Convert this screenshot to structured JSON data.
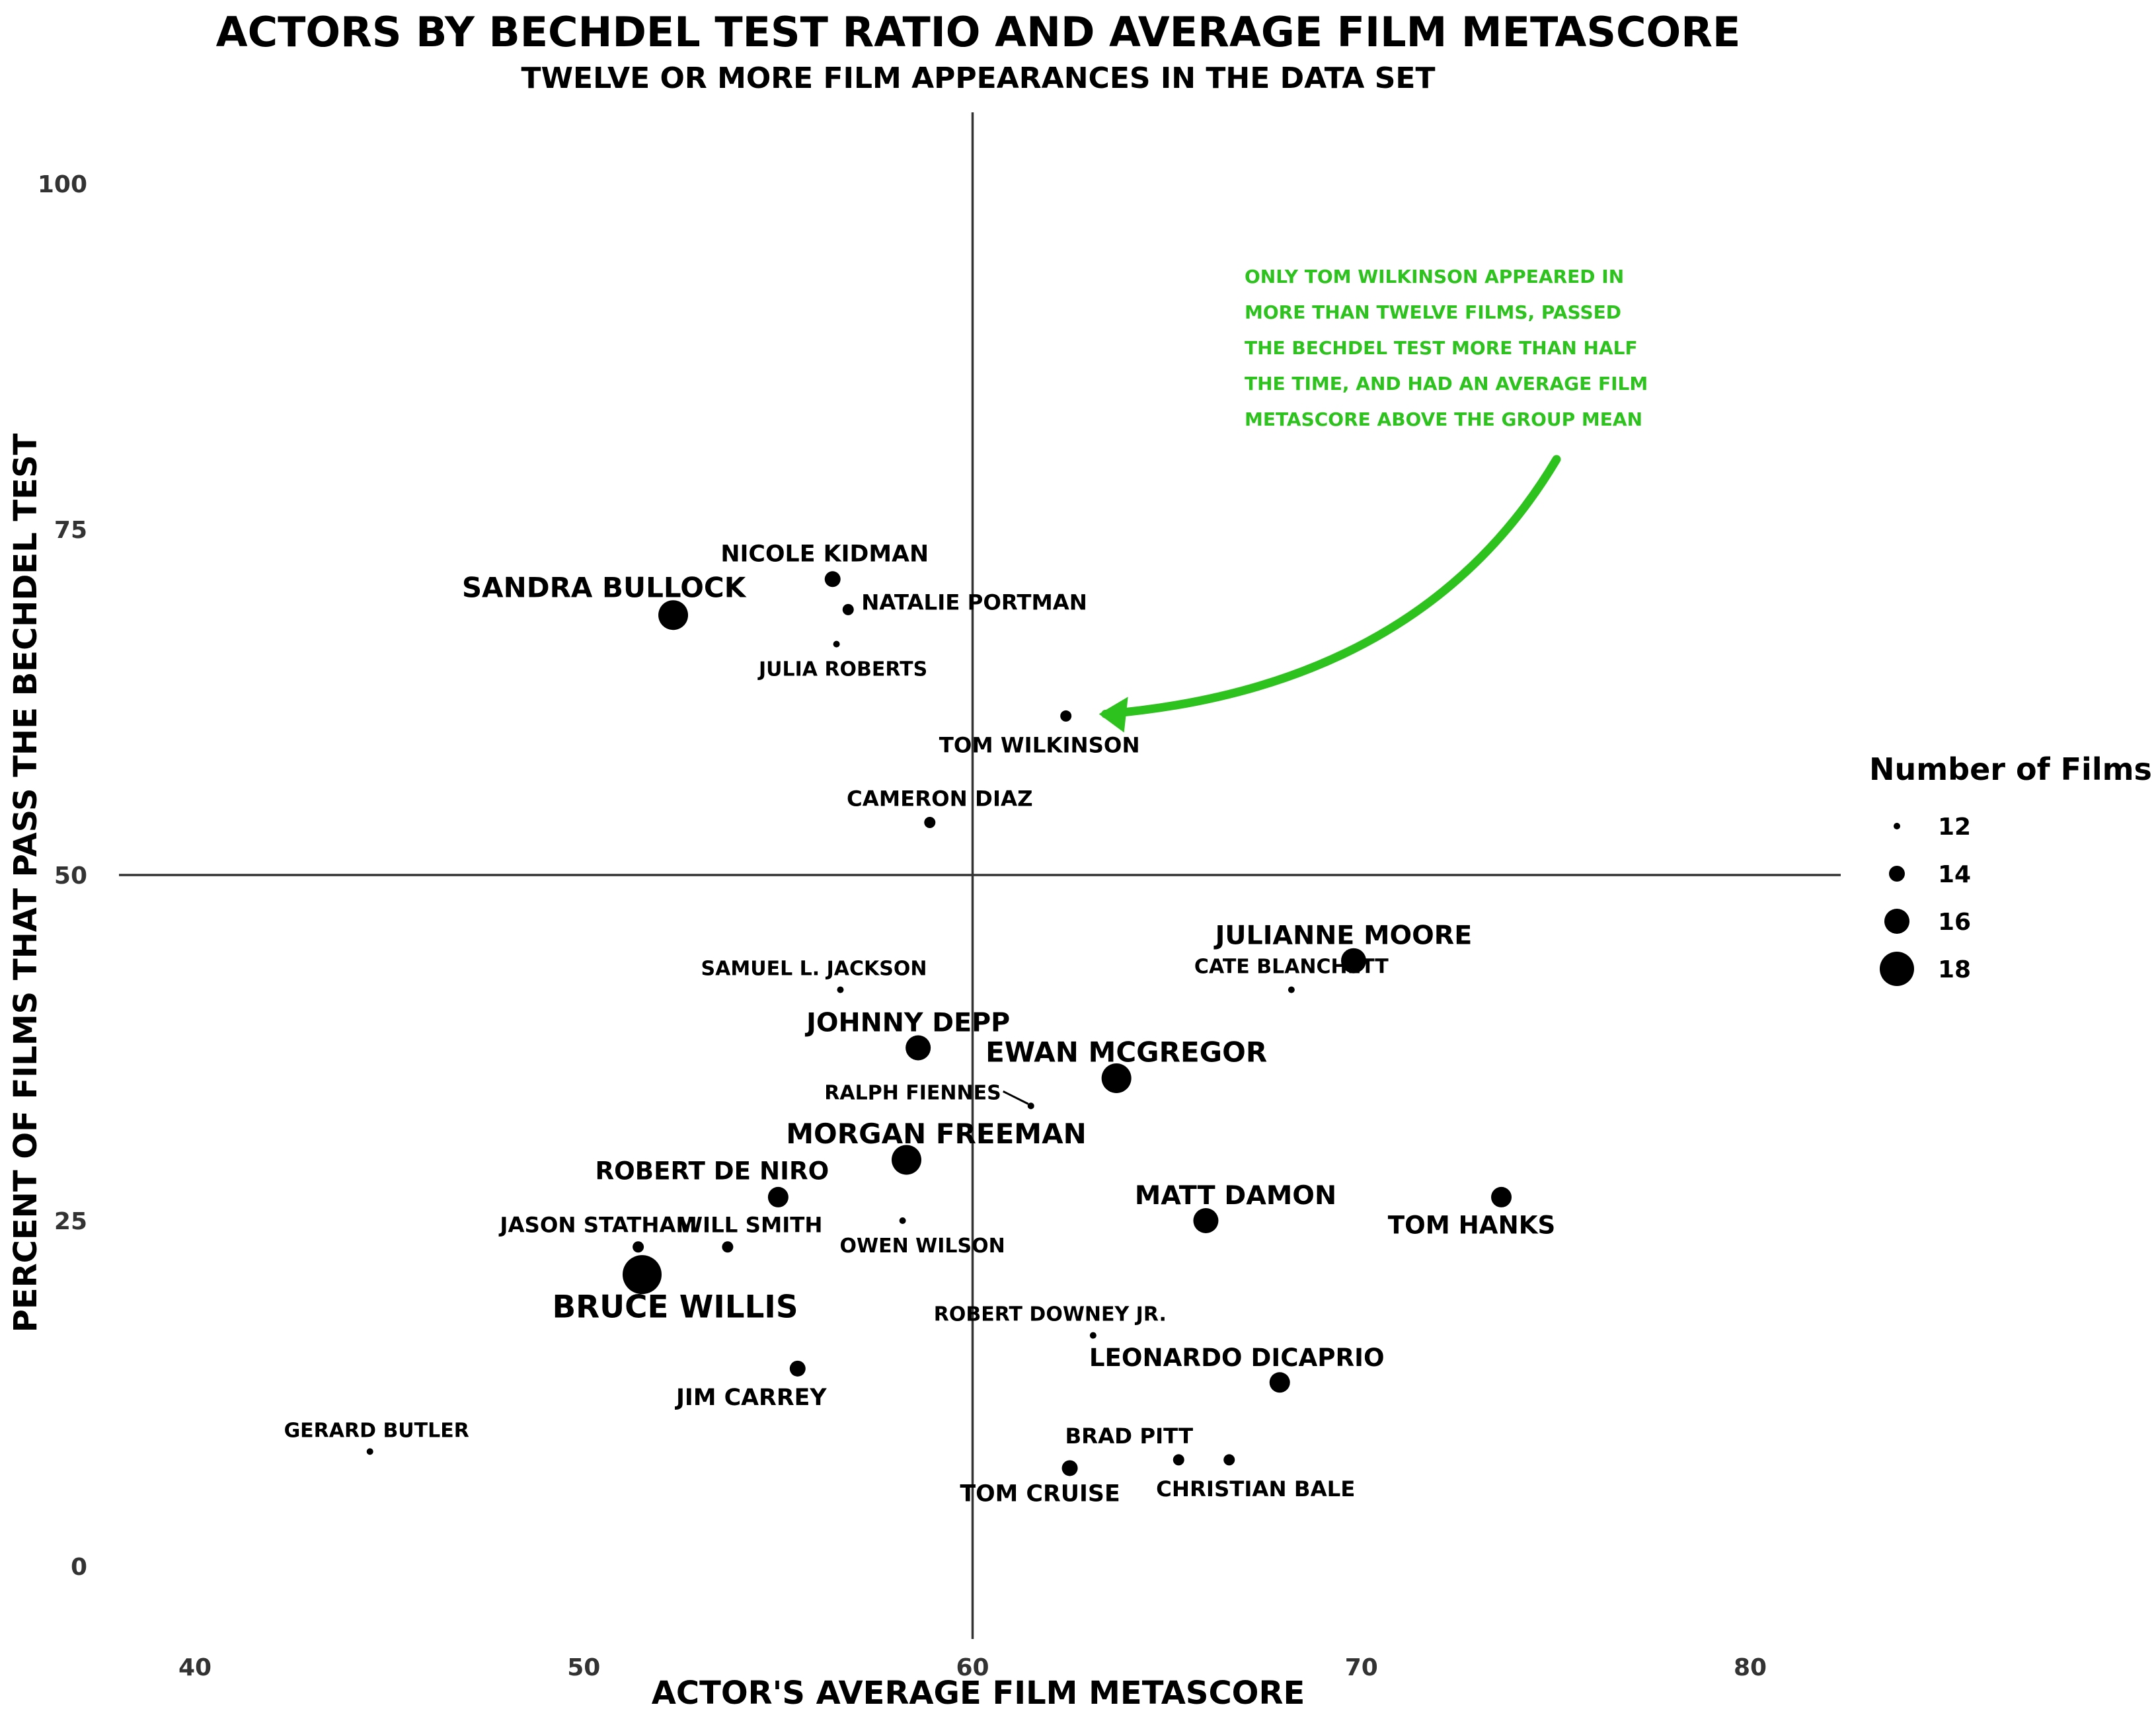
{
  "chart_data": {
    "type": "scatter",
    "title": "Actors by Bechdel Test Ratio and Average Film Metascore",
    "subtitle": "Twelve or more film appearances in the data set",
    "xlabel": "Actor's Average Film Metascore",
    "ylabel": "Percent of Films That Pass the Bechdel Test",
    "xlim": [
      38.5,
      82.5
    ],
    "ylim": [
      -5,
      105
    ],
    "x_ticks": [
      40,
      50,
      60,
      70,
      80
    ],
    "y_ticks": [
      0,
      25,
      50,
      75,
      100
    ],
    "reference_lines": {
      "x": 60,
      "y": 50
    },
    "grid": false,
    "legend": {
      "title": "Number of Films",
      "position": "right",
      "sizes": [
        12,
        14,
        16,
        18
      ]
    },
    "points": [
      {
        "label": "Sandra Bullock",
        "x": 52.3,
        "y": 68.8,
        "films": 17
      },
      {
        "label": "Nicole Kidman",
        "x": 56.4,
        "y": 71.4,
        "films": 14
      },
      {
        "label": "Natalie Portman",
        "x": 56.8,
        "y": 69.2,
        "films": 13
      },
      {
        "label": "Julia Roberts",
        "x": 56.5,
        "y": 66.7,
        "films": 12
      },
      {
        "label": "Tom Wilkinson",
        "x": 62.4,
        "y": 61.5,
        "films": 13
      },
      {
        "label": "Cameron Diaz",
        "x": 58.9,
        "y": 53.8,
        "films": 13
      },
      {
        "label": "Samuel L. Jackson",
        "x": 56.6,
        "y": 41.7,
        "films": 12
      },
      {
        "label": "Johnny Depp",
        "x": 58.6,
        "y": 37.5,
        "films": 16
      },
      {
        "label": "Ralph Fiennes",
        "x": 61.5,
        "y": 33.3,
        "films": 12
      },
      {
        "label": "Ewan McGregor",
        "x": 63.7,
        "y": 35.3,
        "films": 17
      },
      {
        "label": "Morgan Freeman",
        "x": 58.3,
        "y": 29.4,
        "films": 17
      },
      {
        "label": "Julianne Moore",
        "x": 69.8,
        "y": 43.8,
        "films": 16
      },
      {
        "label": "Cate Blanchett",
        "x": 68.2,
        "y": 41.7,
        "films": 12
      },
      {
        "label": "Robert De Niro",
        "x": 55.0,
        "y": 26.7,
        "films": 15
      },
      {
        "label": "Jason Statham",
        "x": 51.4,
        "y": 23.1,
        "films": 13
      },
      {
        "label": "Will Smith",
        "x": 53.7,
        "y": 23.1,
        "films": 13
      },
      {
        "label": "Owen Wilson",
        "x": 58.2,
        "y": 25.0,
        "films": 12
      },
      {
        "label": "Bruce Willis",
        "x": 51.5,
        "y": 21.1,
        "films": 19
      },
      {
        "label": "Matt Damon",
        "x": 66.0,
        "y": 25.0,
        "films": 16
      },
      {
        "label": "Tom Hanks",
        "x": 73.6,
        "y": 26.7,
        "films": 15
      },
      {
        "label": "Robert Downey Jr.",
        "x": 63.1,
        "y": 16.7,
        "films": 12
      },
      {
        "label": "Leonardo DiCaprio",
        "x": 67.9,
        "y": 13.3,
        "films": 15
      },
      {
        "label": "Jim Carrey",
        "x": 55.5,
        "y": 14.3,
        "films": 14
      },
      {
        "label": "Gerard Butler",
        "x": 44.5,
        "y": 8.3,
        "films": 12
      },
      {
        "label": "Brad Pitt",
        "x": 65.3,
        "y": 7.7,
        "films": 13
      },
      {
        "label": "Christian Bale",
        "x": 66.6,
        "y": 7.7,
        "films": 13
      },
      {
        "label": "Tom Cruise",
        "x": 62.5,
        "y": 7.1,
        "films": 14
      }
    ],
    "annotation": {
      "lines": [
        "Only Tom Wilkinson appeared in",
        "more than twelve films, passed",
        "the Bechdel test more than half",
        "the time, and had an average film",
        "metascore above the group mean"
      ],
      "color": "#2ec21e",
      "points_to": "Tom Wilkinson"
    },
    "point_color": "#000000"
  }
}
